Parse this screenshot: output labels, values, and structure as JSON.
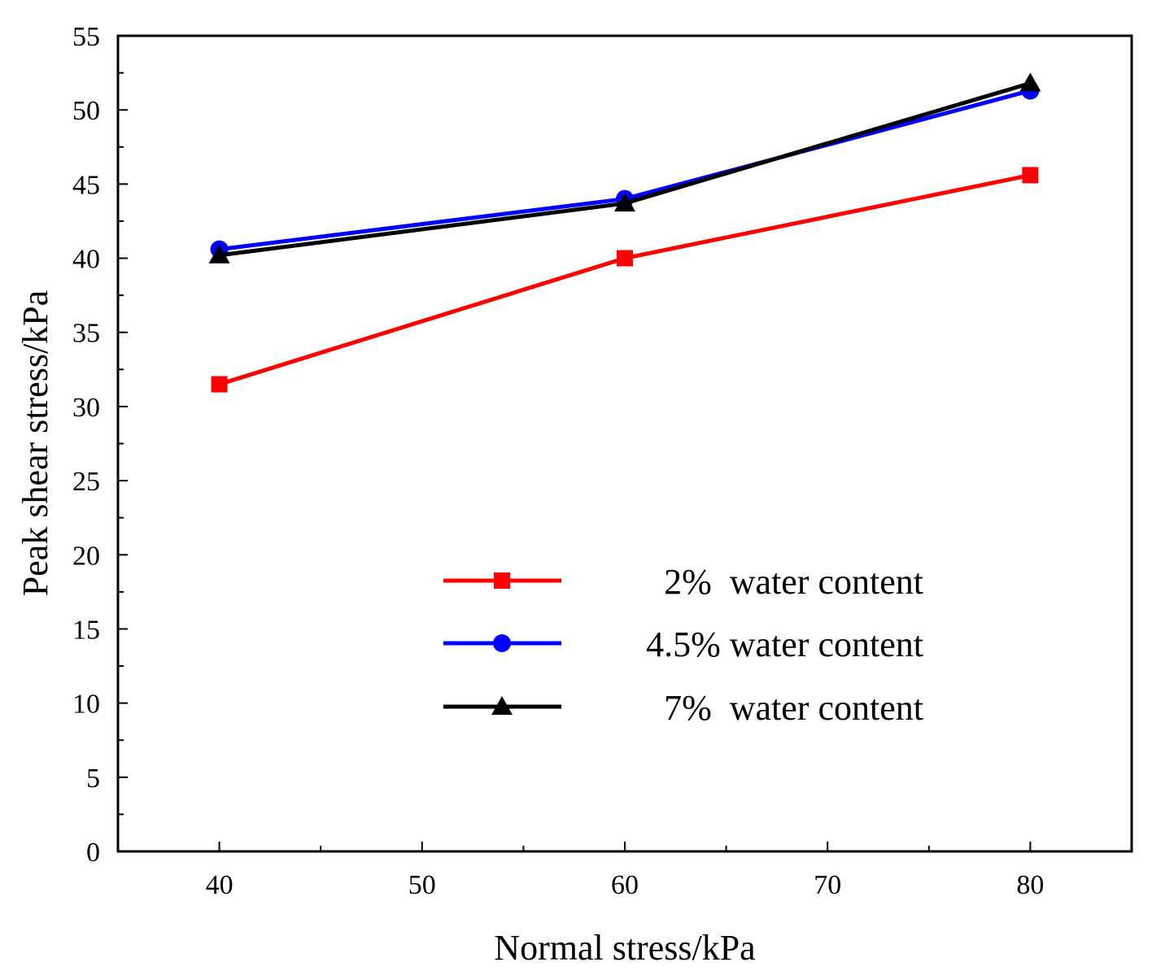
{
  "chart_data": {
    "type": "line",
    "title": "",
    "xlabel": "Normal stress/kPa",
    "ylabel": "Peak shear stress/kPa",
    "xlim": [
      35,
      85
    ],
    "ylim": [
      0,
      55
    ],
    "xticks": [
      40,
      50,
      60,
      70,
      80
    ],
    "yticks": [
      0,
      5,
      10,
      15,
      20,
      25,
      30,
      35,
      40,
      45,
      50,
      55
    ],
    "x": [
      40,
      60,
      80
    ],
    "legend_position": "lower-right",
    "series": [
      {
        "name": "2%  water content",
        "values": [
          31.5,
          40.0,
          45.6
        ],
        "color": "#ff0000",
        "marker": "square"
      },
      {
        "name": "4.5% water content",
        "values": [
          40.6,
          44.0,
          51.3
        ],
        "color": "#0000ff",
        "marker": "circle"
      },
      {
        "name": "7%  water content",
        "values": [
          40.2,
          43.7,
          51.8
        ],
        "color": "#000000",
        "marker": "triangle"
      }
    ]
  }
}
